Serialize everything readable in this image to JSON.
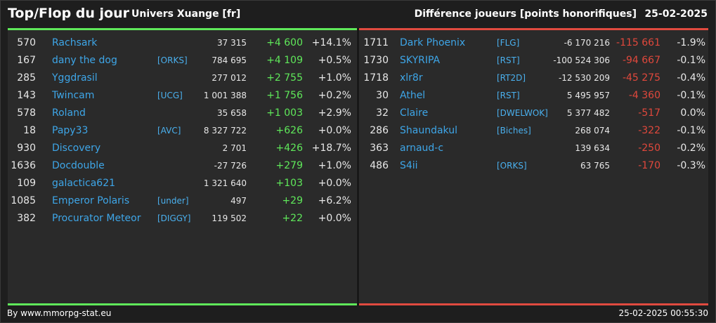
{
  "header": {
    "title": "Top/Flop du jour",
    "universe": "Univers Xuange [fr]",
    "diff_label": "Différence joueurs [points honorifiques]",
    "date": "25-02-2025"
  },
  "colors": {
    "top": "#5fe85a",
    "flop": "#e04a3f",
    "name": "#3ea6e8"
  },
  "top": [
    {
      "rank": "570",
      "name": "Rachsark",
      "ally": "",
      "points": "37 315",
      "diff": "+4 600",
      "pct": "+14.1%"
    },
    {
      "rank": "167",
      "name": "dany the dog",
      "ally": "[ORKS]",
      "points": "784 695",
      "diff": "+4 109",
      "pct": "+0.5%"
    },
    {
      "rank": "285",
      "name": "Yggdrasil",
      "ally": "",
      "points": "277 012",
      "diff": "+2 755",
      "pct": "+1.0%"
    },
    {
      "rank": "143",
      "name": "Twincam",
      "ally": "[UCG]",
      "points": "1 001 388",
      "diff": "+1 756",
      "pct": "+0.2%"
    },
    {
      "rank": "578",
      "name": "Roland",
      "ally": "",
      "points": "35 658",
      "diff": "+1 003",
      "pct": "+2.9%"
    },
    {
      "rank": "18",
      "name": "Papy33",
      "ally": "[AVC]",
      "points": "8 327 722",
      "diff": "+626",
      "pct": "+0.0%"
    },
    {
      "rank": "930",
      "name": "Discovery",
      "ally": "",
      "points": "2 701",
      "diff": "+426",
      "pct": "+18.7%"
    },
    {
      "rank": "1636",
      "name": "Docdouble",
      "ally": "",
      "points": "-27 726",
      "diff": "+279",
      "pct": "+1.0%"
    },
    {
      "rank": "109",
      "name": "galactica621",
      "ally": "",
      "points": "1 321 640",
      "diff": "+103",
      "pct": "+0.0%"
    },
    {
      "rank": "1085",
      "name": "Emperor Polaris",
      "ally": "[under]",
      "points": "497",
      "diff": "+29",
      "pct": "+6.2%"
    },
    {
      "rank": "382",
      "name": "Procurator Meteor",
      "ally": "[DIGGY]",
      "points": "119 502",
      "diff": "+22",
      "pct": "+0.0%"
    }
  ],
  "flop": [
    {
      "rank": "1711",
      "name": "Dark Phoenix",
      "ally": "[FLG]",
      "points": "-6 170 216",
      "diff": "-115 661",
      "pct": "-1.9%"
    },
    {
      "rank": "1730",
      "name": "SKYRIPA",
      "ally": "[RST]",
      "points": "-100 524 306",
      "diff": "-94 667",
      "pct": "-0.1%"
    },
    {
      "rank": "1718",
      "name": "xlr8r",
      "ally": "[RT2D]",
      "points": "-12 530 209",
      "diff": "-45 275",
      "pct": "-0.4%"
    },
    {
      "rank": "30",
      "name": "Athel",
      "ally": "[RST]",
      "points": "5 495 957",
      "diff": "-4 360",
      "pct": "-0.1%"
    },
    {
      "rank": "32",
      "name": "Claire",
      "ally": "[DWELWOK]",
      "points": "5 377 482",
      "diff": "-517",
      "pct": "0.0%"
    },
    {
      "rank": "286",
      "name": "Shaundakul",
      "ally": "[Biches]",
      "points": "268 074",
      "diff": "-322",
      "pct": "-0.1%"
    },
    {
      "rank": "363",
      "name": "arnaud-c",
      "ally": "",
      "points": "139 634",
      "diff": "-250",
      "pct": "-0.2%"
    },
    {
      "rank": "486",
      "name": "S4ii",
      "ally": "[ORKS]",
      "points": "63 765",
      "diff": "-170",
      "pct": "-0.3%"
    }
  ],
  "footer": {
    "credit": "By www.mmorpg-stat.eu",
    "timestamp": "25-02-2025 00:55:30"
  }
}
